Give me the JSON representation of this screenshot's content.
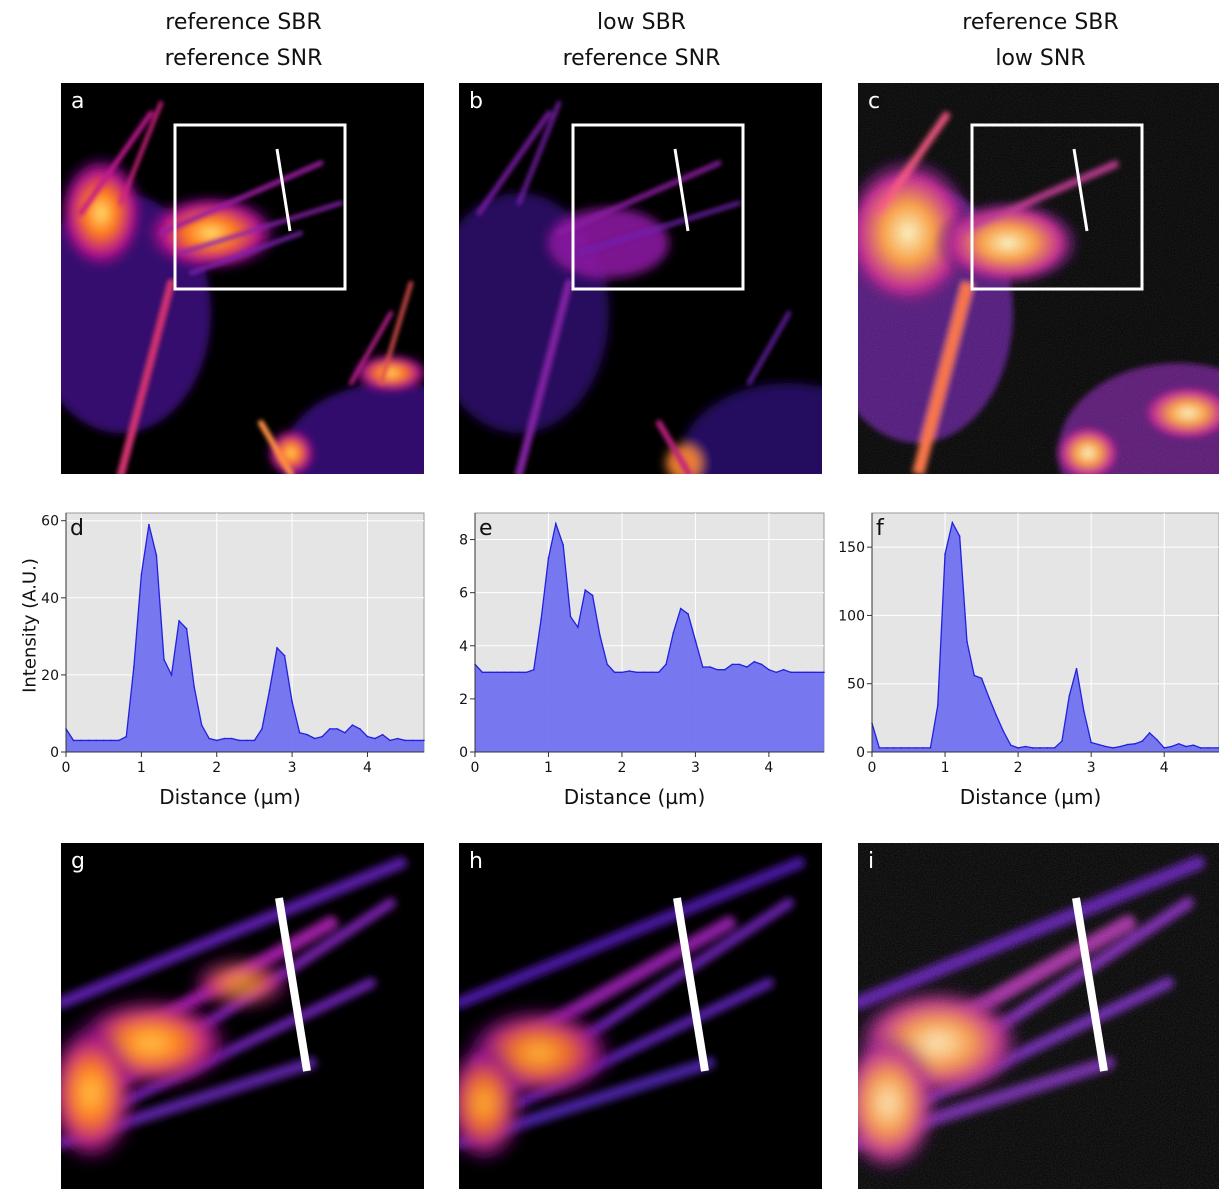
{
  "columns": [
    {
      "title_line1": "reference SBR",
      "title_line2": "reference SNR"
    },
    {
      "title_line1": "low SBR",
      "title_line2": "reference SNR"
    },
    {
      "title_line1": "reference SBR",
      "title_line2": "low SNR"
    }
  ],
  "panels": {
    "top": [
      "a",
      "b",
      "c"
    ],
    "plots": [
      "d",
      "e",
      "f"
    ],
    "bottom": [
      "g",
      "h",
      "i"
    ]
  },
  "ylabel": "Intensity (A.U.)",
  "chart_data": [
    {
      "type": "area",
      "panel": "d",
      "xlabel": "Distance (µm)",
      "ylabel": "Intensity (A.U.)",
      "xlim": [
        0,
        4.75
      ],
      "ylim": [
        0,
        62
      ],
      "xticks": [
        0,
        1,
        2,
        3,
        4
      ],
      "yticks": [
        0,
        20,
        40,
        60
      ],
      "grid": true,
      "color": "#2020e0",
      "x": [
        0,
        0.1,
        0.2,
        0.3,
        0.4,
        0.5,
        0.6,
        0.7,
        0.8,
        0.9,
        1.0,
        1.1,
        1.2,
        1.3,
        1.4,
        1.5,
        1.6,
        1.7,
        1.8,
        1.9,
        2.0,
        2.1,
        2.2,
        2.3,
        2.4,
        2.5,
        2.6,
        2.7,
        2.8,
        2.9,
        3.0,
        3.1,
        3.2,
        3.3,
        3.4,
        3.5,
        3.6,
        3.7,
        3.8,
        3.9,
        4.0,
        4.1,
        4.2,
        4.3,
        4.4,
        4.5,
        4.6,
        4.75
      ],
      "y": [
        6,
        3,
        3,
        3,
        3,
        3,
        3,
        3,
        4,
        22,
        46,
        59,
        51,
        24,
        20,
        34,
        32,
        17,
        7,
        3.5,
        3,
        3.5,
        3.5,
        3,
        3,
        3,
        6,
        16,
        27,
        25,
        13,
        5,
        4.5,
        3.5,
        4,
        6,
        6,
        5,
        7,
        6,
        4,
        3.5,
        4.5,
        3,
        3.5,
        3,
        3,
        3
      ]
    },
    {
      "type": "area",
      "panel": "e",
      "xlabel": "Distance (µm)",
      "ylabel": "",
      "xlim": [
        0,
        4.75
      ],
      "ylim": [
        0,
        9
      ],
      "xticks": [
        0,
        1,
        2,
        3,
        4
      ],
      "yticks": [
        0,
        2,
        4,
        6,
        8
      ],
      "grid": true,
      "color": "#2020e0",
      "x": [
        0,
        0.1,
        0.2,
        0.3,
        0.4,
        0.5,
        0.6,
        0.7,
        0.8,
        0.9,
        1.0,
        1.1,
        1.2,
        1.3,
        1.4,
        1.5,
        1.6,
        1.7,
        1.8,
        1.9,
        2.0,
        2.1,
        2.2,
        2.3,
        2.4,
        2.5,
        2.6,
        2.7,
        2.8,
        2.9,
        3.0,
        3.1,
        3.2,
        3.3,
        3.4,
        3.5,
        3.6,
        3.7,
        3.8,
        3.9,
        4.0,
        4.1,
        4.2,
        4.3,
        4.4,
        4.5,
        4.6,
        4.75
      ],
      "y": [
        3.3,
        3,
        3,
        3,
        3,
        3,
        3,
        3,
        3.1,
        5,
        7.3,
        8.6,
        7.8,
        5.1,
        4.7,
        6.1,
        5.9,
        4.4,
        3.3,
        3,
        3,
        3.05,
        3,
        3,
        3,
        3,
        3.3,
        4.5,
        5.4,
        5.2,
        4.2,
        3.2,
        3.2,
        3.1,
        3.1,
        3.3,
        3.3,
        3.2,
        3.4,
        3.3,
        3.1,
        3,
        3.1,
        3,
        3,
        3,
        3,
        3
      ]
    },
    {
      "type": "area",
      "panel": "f",
      "xlabel": "Distance (µm)",
      "ylabel": "",
      "xlim": [
        0,
        4.75
      ],
      "ylim": [
        0,
        175
      ],
      "xticks": [
        0,
        1,
        2,
        3,
        4
      ],
      "yticks": [
        0,
        50,
        100,
        150
      ],
      "grid": true,
      "color": "#2020e0",
      "x": [
        0,
        0.1,
        0.2,
        0.3,
        0.4,
        0.5,
        0.6,
        0.7,
        0.8,
        0.9,
        1.0,
        1.1,
        1.2,
        1.3,
        1.4,
        1.5,
        1.6,
        1.7,
        1.8,
        1.9,
        2.0,
        2.1,
        2.2,
        2.3,
        2.4,
        2.5,
        2.6,
        2.7,
        2.8,
        2.9,
        3.0,
        3.1,
        3.2,
        3.3,
        3.4,
        3.5,
        3.6,
        3.7,
        3.8,
        3.9,
        4.0,
        4.1,
        4.2,
        4.3,
        4.4,
        4.5,
        4.6,
        4.75
      ],
      "y": [
        21,
        3,
        3,
        3,
        3,
        3,
        3,
        3,
        3,
        34,
        145,
        168,
        158,
        81,
        56,
        54,
        40,
        27,
        15,
        5,
        3,
        4,
        3,
        3,
        3,
        3,
        8,
        41,
        61,
        30,
        7,
        5.5,
        4,
        3,
        4,
        5.5,
        6,
        8,
        14,
        9,
        3,
        4,
        6,
        4,
        5,
        3,
        3,
        3
      ]
    }
  ]
}
